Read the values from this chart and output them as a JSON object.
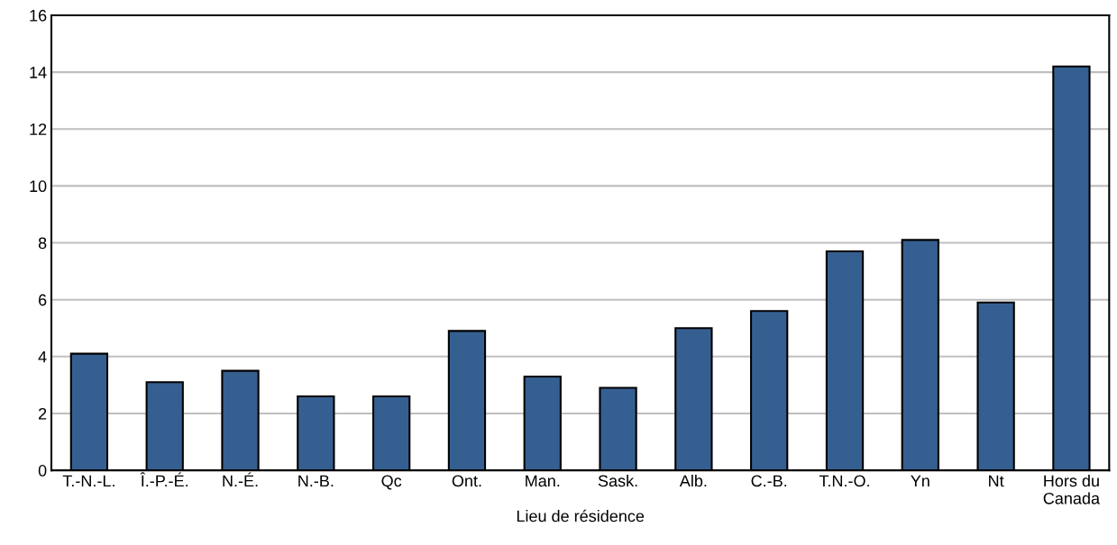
{
  "chart_data": {
    "type": "bar",
    "xlabel": "Lieu de résidence",
    "categories": [
      "T.-N.-L.",
      "Î.-P.-É.",
      "N.-É.",
      "N.-B.",
      "Qc",
      "Ont.",
      "Man.",
      "Sask.",
      "Alb.",
      "C.-B.",
      "T.N.-O.",
      "Yn",
      "Nt",
      "Hors du\nCanada"
    ],
    "values": [
      4.1,
      3.1,
      3.5,
      2.6,
      2.6,
      4.9,
      3.3,
      2.9,
      5.0,
      5.6,
      7.7,
      8.1,
      5.9,
      14.2
    ],
    "color": "#365f91",
    "ylim": [
      0,
      16
    ],
    "yticks": [
      0,
      2,
      4,
      6,
      8,
      10,
      12,
      14,
      16
    ],
    "grid": "y"
  }
}
